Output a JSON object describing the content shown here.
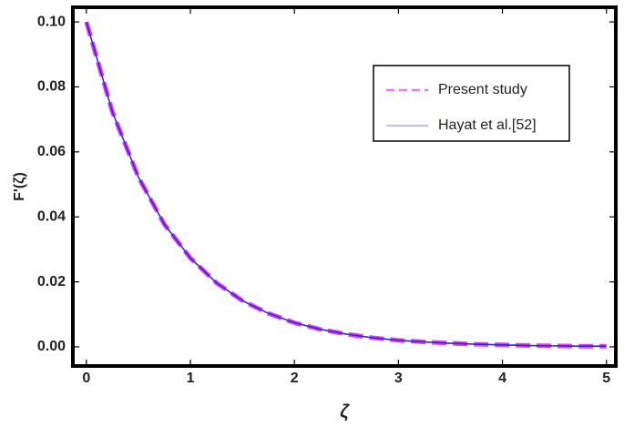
{
  "chart_data": {
    "type": "line",
    "x_label": "ζ",
    "y_label": "F'(ζ)",
    "x": [
      0,
      0.25,
      0.5,
      0.75,
      1,
      1.25,
      1.5,
      1.75,
      2,
      2.25,
      2.5,
      2.75,
      3,
      3.25,
      3.5,
      3.75,
      4,
      4.25,
      4.5,
      4.75,
      5
    ],
    "series": [
      {
        "name": "Present study",
        "color": "#e23fe6",
        "style": "dashed",
        "values": [
          0.1,
          0.0723,
          0.0522,
          0.0377,
          0.0273,
          0.0197,
          0.0142,
          0.0103,
          0.0074,
          0.0054,
          0.0039,
          0.0028,
          0.002,
          0.0015,
          0.0011,
          0.0008,
          0.0006,
          0.0004,
          0.0003,
          0.0002,
          0.0002
        ]
      },
      {
        "name": "Hayat et al.[52]",
        "color": "#2b2bd0",
        "style": "solid",
        "values": [
          0.1,
          0.0723,
          0.0522,
          0.0377,
          0.0273,
          0.0197,
          0.0142,
          0.0103,
          0.0074,
          0.0054,
          0.0039,
          0.0028,
          0.002,
          0.0015,
          0.0011,
          0.0008,
          0.0006,
          0.0004,
          0.0003,
          0.0002,
          0.0002
        ]
      }
    ],
    "xlim": [
      -0.13,
      5.09
    ],
    "ylim": [
      -0.0059,
      0.1045
    ],
    "xticks": [
      0,
      1,
      2,
      3,
      4,
      5
    ],
    "yticks": [
      {
        "value": 0,
        "label": "0.00"
      },
      {
        "value": 0.02,
        "label": "0.02"
      },
      {
        "value": 0.04,
        "label": "0.04"
      },
      {
        "value": 0.06,
        "label": "0.06"
      },
      {
        "value": 0.08,
        "label": "0.08"
      },
      {
        "value": 0.1,
        "label": "0.10"
      }
    ],
    "legend": "upper right",
    "grid": false
  }
}
